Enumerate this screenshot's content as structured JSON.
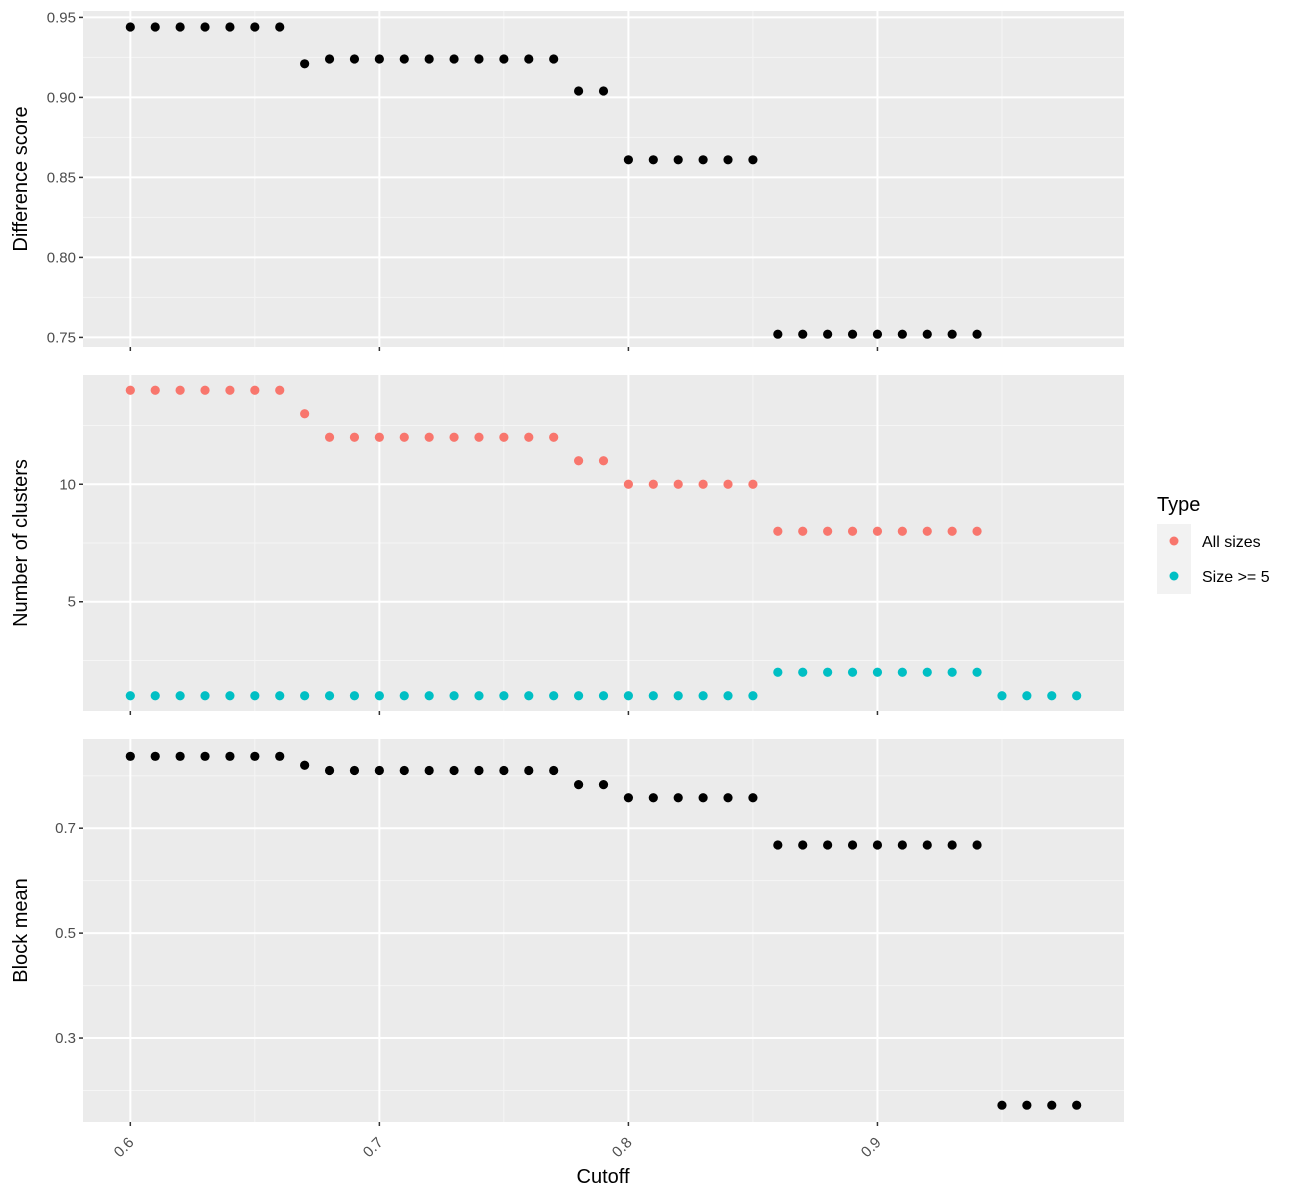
{
  "colors": {
    "panel_background": "#ebebeb",
    "grid_major": "#ffffff",
    "grid_minor": "#f5f5f5",
    "tick": "#333333",
    "point_default": "#000000",
    "all_sizes": "#F8766D",
    "size_ge_5": "#00BFC4"
  },
  "chart_data": {
    "type": "scatter",
    "xlabel": "Cutoff",
    "x_ticks": [
      0.6,
      0.7,
      0.8,
      0.9
    ],
    "x_tick_labels": [
      "0.6",
      "0.7",
      "0.8",
      "0.9"
    ],
    "x_range": [
      0.581,
      0.999
    ],
    "legend": {
      "title": "Type",
      "placement": "right",
      "entries": [
        {
          "label": "All sizes",
          "color": "#F8766D"
        },
        {
          "label": "Size >= 5",
          "color": "#00BFC4"
        }
      ]
    },
    "panels": [
      {
        "ylabel": "Difference score",
        "y_range": [
          0.744,
          0.954
        ],
        "y_ticks": [
          0.75,
          0.8,
          0.85,
          0.9,
          0.95
        ],
        "y_tick_labels": [
          "0.75",
          "0.80",
          "0.85",
          "0.90",
          "0.95"
        ],
        "y_minor": [
          0.775,
          0.825,
          0.875,
          0.925
        ],
        "show_x_labels": false,
        "series": [
          {
            "color_key": "point_default",
            "x": [
              0.6,
              0.61,
              0.62,
              0.63,
              0.64,
              0.65,
              0.66,
              0.67,
              0.68,
              0.69,
              0.7,
              0.71,
              0.72,
              0.73,
              0.74,
              0.75,
              0.76,
              0.77,
              0.78,
              0.79,
              0.8,
              0.81,
              0.82,
              0.83,
              0.84,
              0.85,
              0.86,
              0.87,
              0.88,
              0.89,
              0.9,
              0.91,
              0.92,
              0.93,
              0.94
            ],
            "y": [
              0.944,
              0.944,
              0.944,
              0.944,
              0.944,
              0.944,
              0.944,
              0.921,
              0.924,
              0.924,
              0.924,
              0.924,
              0.924,
              0.924,
              0.924,
              0.924,
              0.924,
              0.924,
              0.904,
              0.904,
              0.861,
              0.861,
              0.861,
              0.861,
              0.861,
              0.861,
              0.752,
              0.752,
              0.752,
              0.752,
              0.752,
              0.752,
              0.752,
              0.752,
              0.752
            ]
          }
        ]
      },
      {
        "ylabel": "Number of clusters",
        "y_range": [
          0.35,
          14.65
        ],
        "y_ticks": [
          5,
          10
        ],
        "y_tick_labels": [
          "5",
          "10"
        ],
        "y_minor": [
          2.5,
          7.5,
          12.5
        ],
        "show_x_labels": false,
        "series": [
          {
            "name": "All sizes",
            "color_key": "all_sizes",
            "x": [
              0.6,
              0.61,
              0.62,
              0.63,
              0.64,
              0.65,
              0.66,
              0.67,
              0.68,
              0.69,
              0.7,
              0.71,
              0.72,
              0.73,
              0.74,
              0.75,
              0.76,
              0.77,
              0.78,
              0.79,
              0.8,
              0.81,
              0.82,
              0.83,
              0.84,
              0.85,
              0.86,
              0.87,
              0.88,
              0.89,
              0.9,
              0.91,
              0.92,
              0.93,
              0.94
            ],
            "y": [
              14,
              14,
              14,
              14,
              14,
              14,
              14,
              13,
              12,
              12,
              12,
              12,
              12,
              12,
              12,
              12,
              12,
              12,
              11,
              11,
              10,
              10,
              10,
              10,
              10,
              10,
              8,
              8,
              8,
              8,
              8,
              8,
              8,
              8,
              8
            ]
          },
          {
            "name": "Size >= 5",
            "color_key": "size_ge_5",
            "x": [
              0.6,
              0.61,
              0.62,
              0.63,
              0.64,
              0.65,
              0.66,
              0.67,
              0.68,
              0.69,
              0.7,
              0.71,
              0.72,
              0.73,
              0.74,
              0.75,
              0.76,
              0.77,
              0.78,
              0.79,
              0.8,
              0.81,
              0.82,
              0.83,
              0.84,
              0.85,
              0.86,
              0.87,
              0.88,
              0.89,
              0.9,
              0.91,
              0.92,
              0.93,
              0.94,
              0.95,
              0.96,
              0.97,
              0.98
            ],
            "y": [
              1,
              1,
              1,
              1,
              1,
              1,
              1,
              1,
              1,
              1,
              1,
              1,
              1,
              1,
              1,
              1,
              1,
              1,
              1,
              1,
              1,
              1,
              1,
              1,
              1,
              1,
              2,
              2,
              2,
              2,
              2,
              2,
              2,
              2,
              2,
              1,
              1,
              1,
              1
            ]
          }
        ]
      },
      {
        "ylabel": "Block mean",
        "y_range": [
          0.14,
          0.87
        ],
        "y_ticks": [
          0.3,
          0.5,
          0.7
        ],
        "y_tick_labels": [
          "0.3",
          "0.5",
          "0.7"
        ],
        "y_minor": [
          0.2,
          0.4,
          0.6,
          0.8
        ],
        "show_x_labels": true,
        "series": [
          {
            "color_key": "point_default",
            "x": [
              0.6,
              0.61,
              0.62,
              0.63,
              0.64,
              0.65,
              0.66,
              0.67,
              0.68,
              0.69,
              0.7,
              0.71,
              0.72,
              0.73,
              0.74,
              0.75,
              0.76,
              0.77,
              0.78,
              0.79,
              0.8,
              0.81,
              0.82,
              0.83,
              0.84,
              0.85,
              0.86,
              0.87,
              0.88,
              0.89,
              0.9,
              0.91,
              0.92,
              0.93,
              0.94,
              0.95,
              0.96,
              0.97,
              0.98
            ],
            "y": [
              0.837,
              0.837,
              0.837,
              0.837,
              0.837,
              0.837,
              0.837,
              0.82,
              0.81,
              0.81,
              0.81,
              0.81,
              0.81,
              0.81,
              0.81,
              0.81,
              0.81,
              0.81,
              0.783,
              0.783,
              0.758,
              0.758,
              0.758,
              0.758,
              0.758,
              0.758,
              0.668,
              0.668,
              0.668,
              0.668,
              0.668,
              0.668,
              0.668,
              0.668,
              0.668,
              0.172,
              0.172,
              0.172,
              0.172
            ]
          }
        ]
      }
    ]
  }
}
